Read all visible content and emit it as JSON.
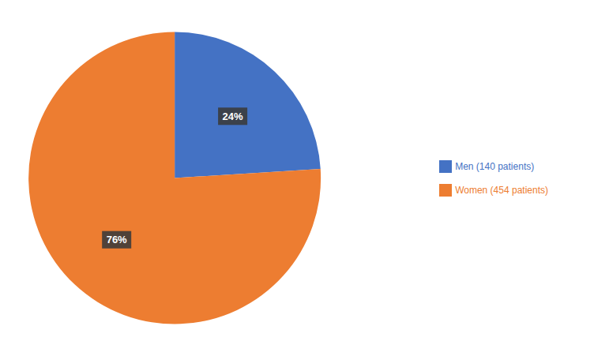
{
  "chart_data": {
    "type": "pie",
    "categories": [
      "Men (140 patients)",
      "Women (454 patients)"
    ],
    "values": [
      24,
      76
    ],
    "value_labels": [
      "24%",
      "76%"
    ],
    "colors": [
      "#4472C4",
      "#ED7D31"
    ],
    "data_labels": true,
    "legend": "right"
  }
}
